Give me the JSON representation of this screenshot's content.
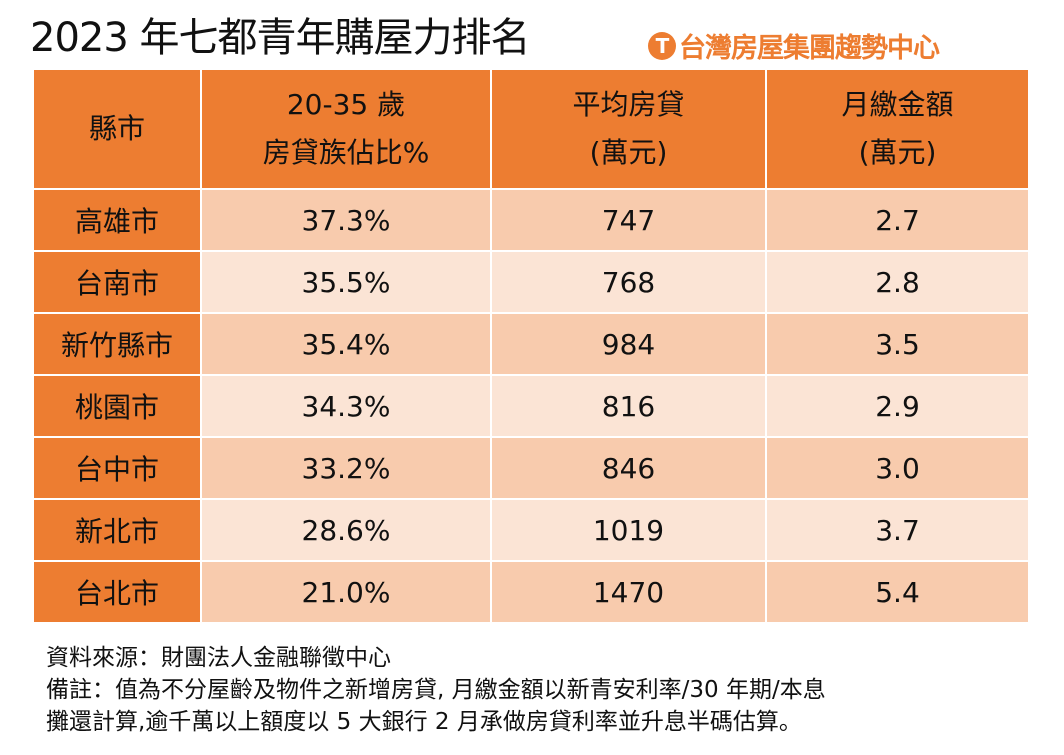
{
  "title": "2023 年七都青年購屋力排名",
  "brand": {
    "name": "台灣房屋集團趨勢中心",
    "logo_letter": "T"
  },
  "colors": {
    "header": "#ED7D31",
    "row_dark": "#F8CBAD",
    "row_light": "#FBE4D5"
  },
  "table": {
    "headers": [
      [
        "縣市",
        ""
      ],
      [
        "20-35 歲",
        "房貸族佔比%"
      ],
      [
        "平均房貸",
        "(萬元)"
      ],
      [
        "月繳金額",
        "(萬元)"
      ]
    ],
    "rows": [
      [
        "高雄市",
        "37.3%",
        "747",
        "2.7"
      ],
      [
        "台南市",
        "35.5%",
        "768",
        "2.8"
      ],
      [
        "新竹縣市",
        "35.4%",
        "984",
        "3.5"
      ],
      [
        "桃園市",
        "34.3%",
        "816",
        "2.9"
      ],
      [
        "台中市",
        "33.2%",
        "846",
        "3.0"
      ],
      [
        "新北市",
        "28.6%",
        "1019",
        "3.7"
      ],
      [
        "台北市",
        "21.0%",
        "1470",
        "5.4"
      ]
    ]
  },
  "notes": [
    "資料來源：財團法人金融聯徵中心",
    "備註：值為不分屋齡及物件之新增房貸, 月繳金額以新青安利率/30 年期/本息",
    "攤還計算,逾千萬以上額度以 5 大銀行 2 月承做房貸利率並升息半碼估算。"
  ]
}
